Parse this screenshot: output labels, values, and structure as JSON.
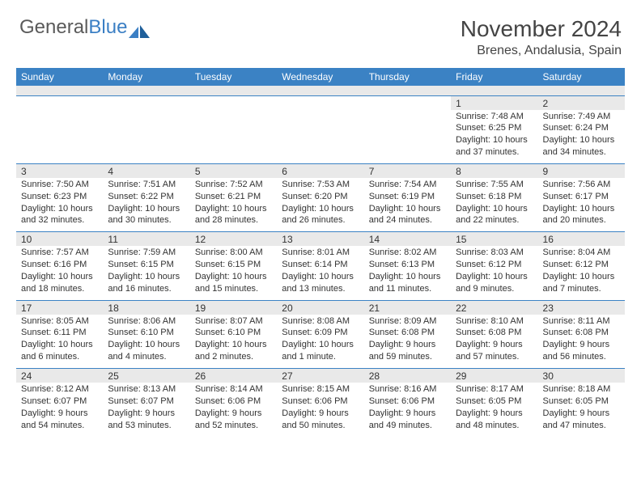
{
  "logo": {
    "text1": "General",
    "text2": "Blue"
  },
  "title": {
    "month": "November 2024",
    "location": "Brenes, Andalusia, Spain"
  },
  "colors": {
    "header_bg": "#3b82c4",
    "stripe_bg": "#e9e9e9",
    "border": "#3b82c4",
    "text": "#333333"
  },
  "dayNames": [
    "Sunday",
    "Monday",
    "Tuesday",
    "Wednesday",
    "Thursday",
    "Friday",
    "Saturday"
  ],
  "weeks": [
    [
      null,
      null,
      null,
      null,
      null,
      {
        "n": "1",
        "sr": "Sunrise: 7:48 AM",
        "ss": "Sunset: 6:25 PM",
        "dl": "Daylight: 10 hours and 37 minutes."
      },
      {
        "n": "2",
        "sr": "Sunrise: 7:49 AM",
        "ss": "Sunset: 6:24 PM",
        "dl": "Daylight: 10 hours and 34 minutes."
      }
    ],
    [
      {
        "n": "3",
        "sr": "Sunrise: 7:50 AM",
        "ss": "Sunset: 6:23 PM",
        "dl": "Daylight: 10 hours and 32 minutes."
      },
      {
        "n": "4",
        "sr": "Sunrise: 7:51 AM",
        "ss": "Sunset: 6:22 PM",
        "dl": "Daylight: 10 hours and 30 minutes."
      },
      {
        "n": "5",
        "sr": "Sunrise: 7:52 AM",
        "ss": "Sunset: 6:21 PM",
        "dl": "Daylight: 10 hours and 28 minutes."
      },
      {
        "n": "6",
        "sr": "Sunrise: 7:53 AM",
        "ss": "Sunset: 6:20 PM",
        "dl": "Daylight: 10 hours and 26 minutes."
      },
      {
        "n": "7",
        "sr": "Sunrise: 7:54 AM",
        "ss": "Sunset: 6:19 PM",
        "dl": "Daylight: 10 hours and 24 minutes."
      },
      {
        "n": "8",
        "sr": "Sunrise: 7:55 AM",
        "ss": "Sunset: 6:18 PM",
        "dl": "Daylight: 10 hours and 22 minutes."
      },
      {
        "n": "9",
        "sr": "Sunrise: 7:56 AM",
        "ss": "Sunset: 6:17 PM",
        "dl": "Daylight: 10 hours and 20 minutes."
      }
    ],
    [
      {
        "n": "10",
        "sr": "Sunrise: 7:57 AM",
        "ss": "Sunset: 6:16 PM",
        "dl": "Daylight: 10 hours and 18 minutes."
      },
      {
        "n": "11",
        "sr": "Sunrise: 7:59 AM",
        "ss": "Sunset: 6:15 PM",
        "dl": "Daylight: 10 hours and 16 minutes."
      },
      {
        "n": "12",
        "sr": "Sunrise: 8:00 AM",
        "ss": "Sunset: 6:15 PM",
        "dl": "Daylight: 10 hours and 15 minutes."
      },
      {
        "n": "13",
        "sr": "Sunrise: 8:01 AM",
        "ss": "Sunset: 6:14 PM",
        "dl": "Daylight: 10 hours and 13 minutes."
      },
      {
        "n": "14",
        "sr": "Sunrise: 8:02 AM",
        "ss": "Sunset: 6:13 PM",
        "dl": "Daylight: 10 hours and 11 minutes."
      },
      {
        "n": "15",
        "sr": "Sunrise: 8:03 AM",
        "ss": "Sunset: 6:12 PM",
        "dl": "Daylight: 10 hours and 9 minutes."
      },
      {
        "n": "16",
        "sr": "Sunrise: 8:04 AM",
        "ss": "Sunset: 6:12 PM",
        "dl": "Daylight: 10 hours and 7 minutes."
      }
    ],
    [
      {
        "n": "17",
        "sr": "Sunrise: 8:05 AM",
        "ss": "Sunset: 6:11 PM",
        "dl": "Daylight: 10 hours and 6 minutes."
      },
      {
        "n": "18",
        "sr": "Sunrise: 8:06 AM",
        "ss": "Sunset: 6:10 PM",
        "dl": "Daylight: 10 hours and 4 minutes."
      },
      {
        "n": "19",
        "sr": "Sunrise: 8:07 AM",
        "ss": "Sunset: 6:10 PM",
        "dl": "Daylight: 10 hours and 2 minutes."
      },
      {
        "n": "20",
        "sr": "Sunrise: 8:08 AM",
        "ss": "Sunset: 6:09 PM",
        "dl": "Daylight: 10 hours and 1 minute."
      },
      {
        "n": "21",
        "sr": "Sunrise: 8:09 AM",
        "ss": "Sunset: 6:08 PM",
        "dl": "Daylight: 9 hours and 59 minutes."
      },
      {
        "n": "22",
        "sr": "Sunrise: 8:10 AM",
        "ss": "Sunset: 6:08 PM",
        "dl": "Daylight: 9 hours and 57 minutes."
      },
      {
        "n": "23",
        "sr": "Sunrise: 8:11 AM",
        "ss": "Sunset: 6:08 PM",
        "dl": "Daylight: 9 hours and 56 minutes."
      }
    ],
    [
      {
        "n": "24",
        "sr": "Sunrise: 8:12 AM",
        "ss": "Sunset: 6:07 PM",
        "dl": "Daylight: 9 hours and 54 minutes."
      },
      {
        "n": "25",
        "sr": "Sunrise: 8:13 AM",
        "ss": "Sunset: 6:07 PM",
        "dl": "Daylight: 9 hours and 53 minutes."
      },
      {
        "n": "26",
        "sr": "Sunrise: 8:14 AM",
        "ss": "Sunset: 6:06 PM",
        "dl": "Daylight: 9 hours and 52 minutes."
      },
      {
        "n": "27",
        "sr": "Sunrise: 8:15 AM",
        "ss": "Sunset: 6:06 PM",
        "dl": "Daylight: 9 hours and 50 minutes."
      },
      {
        "n": "28",
        "sr": "Sunrise: 8:16 AM",
        "ss": "Sunset: 6:06 PM",
        "dl": "Daylight: 9 hours and 49 minutes."
      },
      {
        "n": "29",
        "sr": "Sunrise: 8:17 AM",
        "ss": "Sunset: 6:05 PM",
        "dl": "Daylight: 9 hours and 48 minutes."
      },
      {
        "n": "30",
        "sr": "Sunrise: 8:18 AM",
        "ss": "Sunset: 6:05 PM",
        "dl": "Daylight: 9 hours and 47 minutes."
      }
    ]
  ]
}
